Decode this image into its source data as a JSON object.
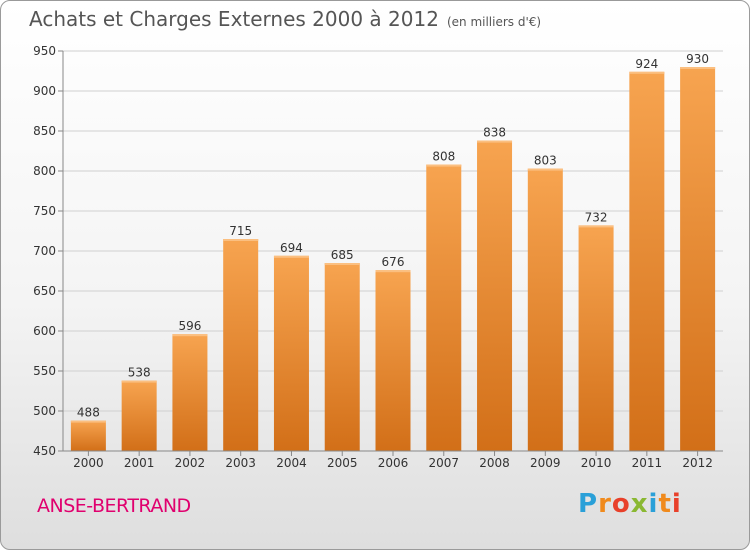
{
  "chart_data": {
    "type": "bar",
    "title": "Achats et Charges Externes 2000 à 2012",
    "subtitle": "(en milliers d'€)",
    "categories": [
      "2000",
      "2001",
      "2002",
      "2003",
      "2004",
      "2005",
      "2006",
      "2007",
      "2008",
      "2009",
      "2010",
      "2011",
      "2012"
    ],
    "values": [
      488,
      538,
      596,
      715,
      694,
      685,
      676,
      808,
      838,
      803,
      732,
      924,
      930
    ],
    "ylim": [
      450,
      950
    ],
    "yticks": [
      450,
      500,
      550,
      600,
      650,
      700,
      750,
      800,
      850,
      900,
      950
    ],
    "grid": true,
    "xlabel": "",
    "ylabel": "",
    "bar_color_top": "#f7a450",
    "bar_color_bottom": "#d26f18"
  },
  "footer": {
    "commune": "ANSE-BERTRAND",
    "logo_letters": [
      "P",
      "r",
      "o",
      "x",
      "i",
      "t",
      "i"
    ],
    "logo_colors": [
      "#2aa0d8",
      "#f08a1c",
      "#e8402a",
      "#8ab832",
      "#2aa0d8",
      "#f08a1c",
      "#e8402a"
    ]
  }
}
